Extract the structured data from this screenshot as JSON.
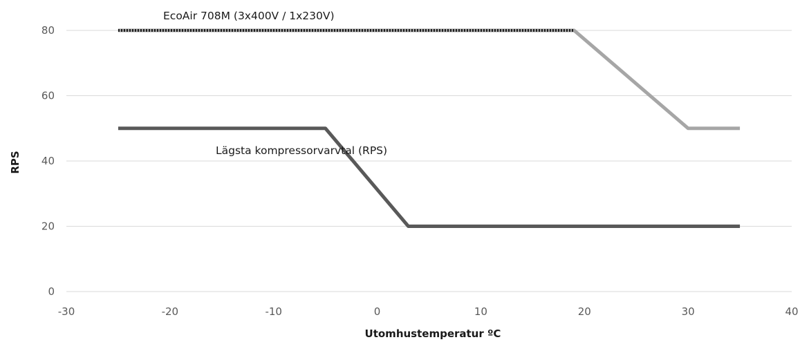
{
  "chart_data": {
    "type": "line",
    "xlabel": "Utomhustemperatur ºC",
    "ylabel": "RPS",
    "xlim": [
      -30,
      40
    ],
    "ylim": [
      0,
      80
    ],
    "x_ticks": [
      "-30",
      "-20",
      "-10",
      "0",
      "10",
      "20",
      "30",
      "40"
    ],
    "y_ticks": [
      "0",
      "20",
      "40",
      "60",
      "80"
    ],
    "grid": "horizontal",
    "series": [
      {
        "name": "EcoAir 708M (3x400V / 1x230V)",
        "color": "#a6a6a6",
        "style": "dashed",
        "x": [
          -25,
          19,
          30,
          35
        ],
        "y": [
          80,
          80,
          50,
          50
        ]
      },
      {
        "name": "Lägsta kompressorvarvtal (RPS)",
        "color": "#595959",
        "style": "solid",
        "x": [
          -25,
          -5,
          3,
          35
        ],
        "y": [
          50,
          50,
          20,
          20
        ]
      }
    ]
  }
}
